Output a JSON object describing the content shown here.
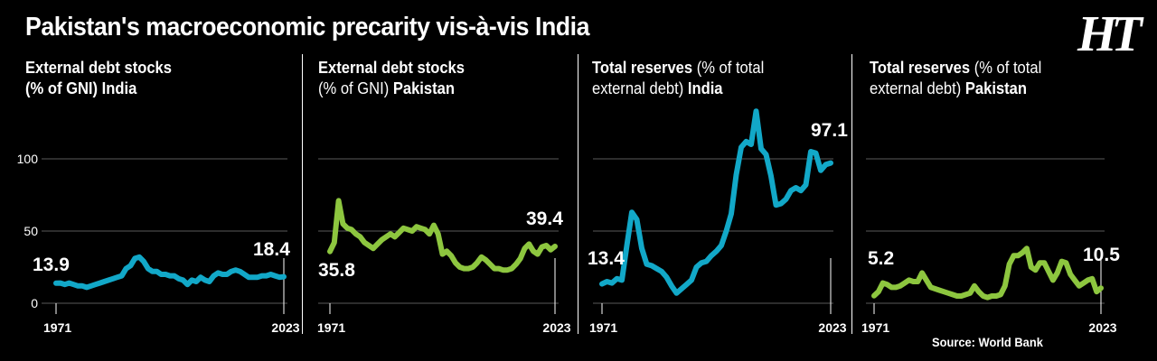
{
  "headline": "Pakistan's macroeconomic precarity vis-à-vis India",
  "logo": "HT",
  "source": "Source: World Bank",
  "colors": {
    "india": "#12a8c8",
    "pakistan": "#8dc63f",
    "background": "#000000",
    "grid": "#5a5a5a"
  },
  "panels": [
    {
      "title_line1": "External debt stocks",
      "title_line2_prefix": "(% of GNI) ",
      "title_line2_bold": "India",
      "bold_line1_part": "",
      "line1_rest": ""
    },
    {
      "title_line1": "External debt stocks",
      "title_line2_prefix": "(% of GNI) ",
      "title_line2_bold": "Pakistan",
      "bold_line1_part": "",
      "line1_rest": ""
    },
    {
      "title_line1_bold": "Total reserves",
      "title_line1_rest": " (% of total",
      "title_line2_prefix": "external debt) ",
      "title_line2_bold": "India"
    },
    {
      "title_line1_bold": "Total reserves",
      "title_line1_rest": " (% of total",
      "title_line2_prefix": "external debt) ",
      "title_line2_bold": "Pakistan"
    }
  ],
  "chart_data": [
    {
      "type": "line",
      "series": [
        {
          "country": "India",
          "color": "#12a8c8",
          "x": [
            1971,
            1972,
            1973,
            1974,
            1975,
            1976,
            1977,
            1978,
            1979,
            1980,
            1981,
            1982,
            1983,
            1984,
            1985,
            1986,
            1987,
            1988,
            1989,
            1990,
            1991,
            1992,
            1993,
            1994,
            1995,
            1996,
            1997,
            1998,
            1999,
            2000,
            2001,
            2002,
            2003,
            2004,
            2005,
            2006,
            2007,
            2008,
            2009,
            2010,
            2011,
            2012,
            2013,
            2014,
            2015,
            2016,
            2017,
            2018,
            2019,
            2020,
            2021,
            2022,
            2023
          ],
          "values": [
            13.9,
            14,
            13,
            14,
            13,
            12,
            12,
            11,
            12,
            13,
            14,
            15,
            16,
            17,
            18,
            19,
            24,
            26,
            31,
            32,
            29,
            24,
            22,
            22,
            20,
            20,
            19,
            19,
            17,
            16,
            13,
            16,
            15,
            18,
            16,
            15,
            19,
            21,
            20,
            20,
            22,
            23,
            22,
            20,
            18,
            18,
            18,
            19,
            19,
            20,
            19,
            18,
            18.4
          ]
        }
      ],
      "y_ticks": [
        0,
        50,
        100
      ],
      "ylim": [
        0,
        140
      ],
      "x_ticks": [
        "1971",
        "2023"
      ],
      "start_label": "13.9",
      "end_label": "18.4"
    },
    {
      "type": "line",
      "series": [
        {
          "country": "Pakistan",
          "color": "#8dc63f",
          "x": [
            1971,
            1972,
            1973,
            1974,
            1975,
            1976,
            1977,
            1978,
            1979,
            1980,
            1981,
            1982,
            1983,
            1984,
            1985,
            1986,
            1987,
            1988,
            1989,
            1990,
            1991,
            1992,
            1993,
            1994,
            1995,
            1996,
            1997,
            1998,
            1999,
            2000,
            2001,
            2002,
            2003,
            2004,
            2005,
            2006,
            2007,
            2008,
            2009,
            2010,
            2011,
            2012,
            2013,
            2014,
            2015,
            2016,
            2017,
            2018,
            2019,
            2020,
            2021,
            2022,
            2023
          ],
          "values": [
            35.8,
            42,
            71,
            55,
            52,
            51,
            48,
            46,
            42,
            40,
            38,
            41,
            44,
            46,
            48,
            46,
            49,
            52,
            51,
            50,
            53,
            52,
            51,
            48,
            54,
            48,
            34,
            36,
            33,
            28,
            25,
            24,
            24,
            25,
            28,
            32,
            30,
            27,
            24,
            24,
            23,
            23,
            24,
            27,
            31,
            38,
            41,
            36,
            34,
            39,
            40,
            37,
            39.4
          ]
        }
      ],
      "y_ticks": [
        0,
        50,
        100
      ],
      "ylim": [
        0,
        140
      ],
      "x_ticks": [
        "1971",
        "2023"
      ],
      "start_label": "35.8",
      "end_label": "39.4"
    },
    {
      "type": "line",
      "series": [
        {
          "country": "India",
          "color": "#12a8c8",
          "x": [
            1971,
            1972,
            1973,
            1974,
            1975,
            1976,
            1977,
            1978,
            1979,
            1980,
            1981,
            1982,
            1983,
            1984,
            1985,
            1986,
            1987,
            1988,
            1989,
            1990,
            1991,
            1992,
            1993,
            1994,
            1995,
            1996,
            1997,
            1998,
            1999,
            2000,
            2001,
            2002,
            2003,
            2004,
            2005,
            2006,
            2007,
            2008,
            2009,
            2010,
            2011,
            2012,
            2013,
            2014,
            2015,
            2016,
            2017,
            2018,
            2019,
            2020,
            2021,
            2022,
            2023
          ],
          "values": [
            13.4,
            15,
            14,
            17,
            16,
            40,
            63,
            58,
            38,
            27,
            26,
            24,
            22,
            18,
            12,
            7,
            10,
            13,
            16,
            25,
            28,
            29,
            33,
            36,
            40,
            50,
            62,
            89,
            108,
            112,
            110,
            133,
            107,
            103,
            88,
            68,
            69,
            72,
            78,
            80,
            78,
            82,
            105,
            104,
            92,
            96,
            97.1,
            null,
            null,
            null,
            null,
            null,
            null
          ]
        }
      ],
      "y_ticks": [
        0,
        50,
        100
      ],
      "ylim": [
        0,
        140
      ],
      "x_ticks": [
        "1971",
        "2023"
      ],
      "start_label": "13.4",
      "end_label": "97.1"
    },
    {
      "type": "line",
      "series": [
        {
          "country": "Pakistan",
          "color": "#8dc63f",
          "x": [
            1971,
            1972,
            1973,
            1974,
            1975,
            1976,
            1977,
            1978,
            1979,
            1980,
            1981,
            1982,
            1983,
            1984,
            1985,
            1986,
            1987,
            1988,
            1989,
            1990,
            1991,
            1992,
            1993,
            1994,
            1995,
            1996,
            1997,
            1998,
            1999,
            2000,
            2001,
            2002,
            2003,
            2004,
            2005,
            2006,
            2007,
            2008,
            2009,
            2010,
            2011,
            2012,
            2013,
            2014,
            2015,
            2016,
            2017,
            2018,
            2019,
            2020,
            2021,
            2022,
            2023
          ],
          "values": [
            5.2,
            8,
            14,
            13,
            11,
            11,
            12,
            14,
            16,
            15,
            15,
            21,
            16,
            11,
            10,
            9,
            8,
            7,
            6,
            5,
            5,
            6,
            7,
            12,
            8,
            5,
            4,
            5,
            5,
            6,
            12,
            27,
            33,
            33,
            35,
            38,
            25,
            23,
            28,
            28,
            22,
            16,
            21,
            29,
            28,
            20,
            16,
            12,
            14,
            16,
            17,
            8,
            10.5
          ]
        }
      ],
      "y_ticks": [
        0,
        50,
        100
      ],
      "ylim": [
        0,
        140
      ],
      "x_ticks": [
        "1971",
        "2023"
      ],
      "start_label": "5.2",
      "end_label": "10.5"
    }
  ]
}
